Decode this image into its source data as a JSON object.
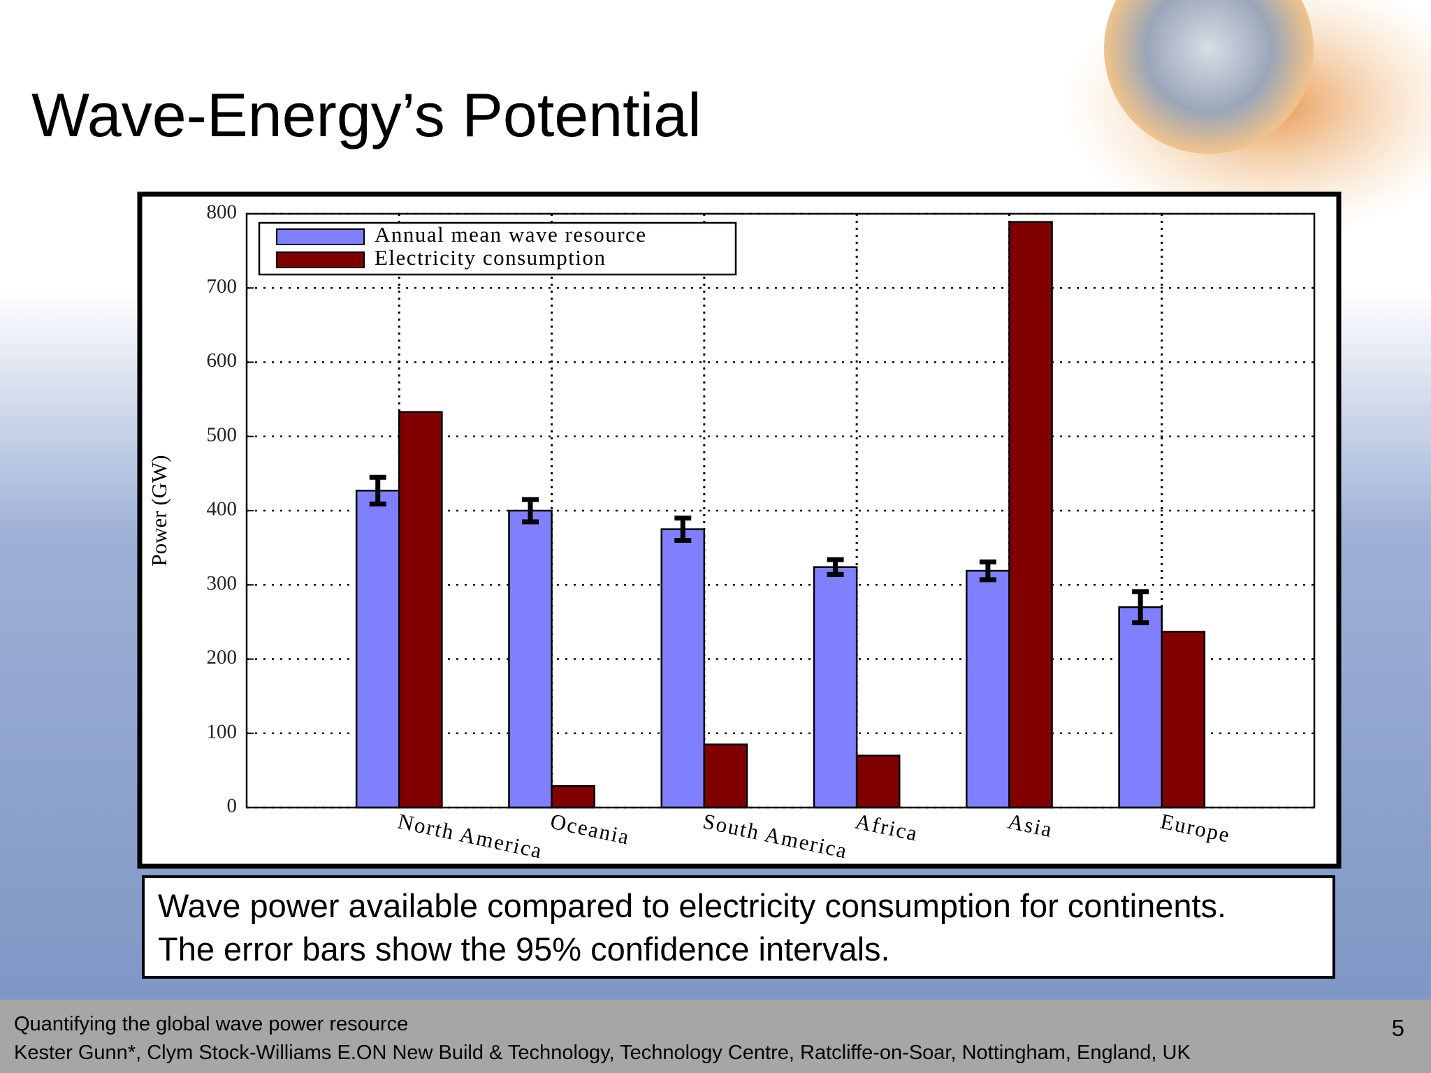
{
  "slide_title": "Wave-Energy’s Potential",
  "chart_data": {
    "type": "bar",
    "ylabel": "Power (GW)",
    "categories": [
      "North America",
      "Oceania",
      "South America",
      "Africa",
      "Asia",
      "Europe"
    ],
    "series": [
      {
        "name": "Annual mean wave resource",
        "color": "#8080ff",
        "values": [
          427,
          400,
          375,
          324,
          319,
          270
        ],
        "errors": [
          18,
          15,
          15,
          10,
          12,
          21
        ]
      },
      {
        "name": "Electricity consumption",
        "color": "#800000",
        "values": [
          533,
          29,
          85,
          70,
          789,
          237
        ]
      }
    ],
    "ylim": [
      0,
      800
    ],
    "yticks": [
      0,
      100,
      200,
      300,
      400,
      500,
      600,
      700,
      800
    ],
    "grid": true,
    "legend": "upper left"
  },
  "caption": [
    "Wave power available compared to electricity consumption for continents.",
    "The error bars show the 95% confidence intervals."
  ],
  "footer": [
    "Quantifying the global wave power resource",
    "Kester Gunn*, Clym Stock-Williams  E.ON New Build & Technology, Technology Centre, Ratcliffe-on-Soar, Nottingham, England, UK"
  ],
  "page_number": "5"
}
